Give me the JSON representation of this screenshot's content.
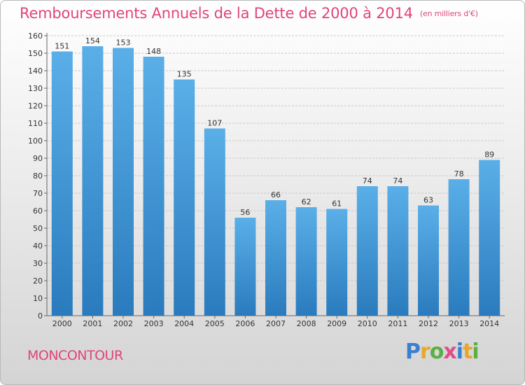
{
  "header": {
    "title": "Remboursements Annuels de la Dette de 2000 à 2014",
    "unit": "(en milliers d'€)"
  },
  "footer": {
    "town": "MONCONTOUR",
    "logo": "Proxiti"
  },
  "colors": {
    "bar_light": "#5aafe8",
    "bar_dark": "#2a7bbd",
    "title": "#e0457b",
    "grid": "#c8c8c8"
  },
  "chart_data": {
    "type": "bar",
    "title": "Remboursements Annuels de la Dette de 2000 à 2014",
    "xlabel": "",
    "ylabel": "",
    "ylim": [
      0,
      160
    ],
    "yticks": [
      0,
      10,
      20,
      30,
      40,
      50,
      60,
      70,
      80,
      90,
      100,
      110,
      120,
      130,
      140,
      150,
      160
    ],
    "grid": true,
    "categories": [
      "2000",
      "2001",
      "2002",
      "2003",
      "2004",
      "2005",
      "2006",
      "2007",
      "2008",
      "2009",
      "2010",
      "2011",
      "2012",
      "2013",
      "2014"
    ],
    "values": [
      151,
      154,
      153,
      148,
      135,
      107,
      56,
      66,
      62,
      61,
      74,
      74,
      63,
      78,
      89
    ]
  }
}
